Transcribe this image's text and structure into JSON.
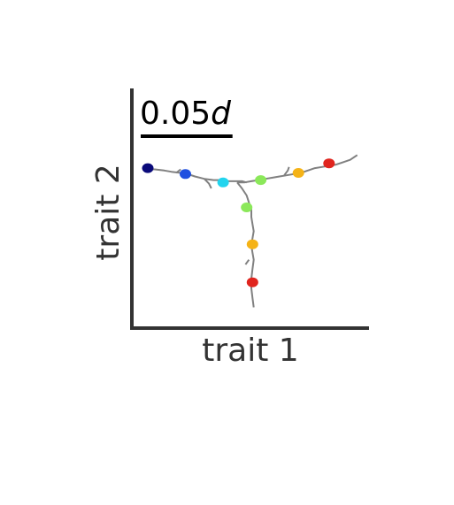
{
  "chart_data": {
    "type": "scatter",
    "xlabel": "trait 1",
    "ylabel": "trait 2",
    "xlim": [
      0,
      1
    ],
    "ylim": [
      0,
      1
    ],
    "grid": false,
    "scale_bar": {
      "number": "0.05",
      "unit": "d",
      "length": 0.39
    },
    "branches": [
      {
        "x": [
          0.05,
          0.09,
          0.13,
          0.16,
          0.2,
          0.23,
          0.26,
          0.3,
          0.34,
          0.37,
          0.4,
          0.43,
          0.46,
          0.48
        ],
        "y": [
          0.66,
          0.66,
          0.655,
          0.65,
          0.645,
          0.64,
          0.63,
          0.62,
          0.615,
          0.615,
          0.61,
          0.61,
          0.61,
          0.605
        ]
      },
      {
        "x": [
          0.44,
          0.47,
          0.5,
          0.53,
          0.56,
          0.59,
          0.62,
          0.65,
          0.68,
          0.71,
          0.74,
          0.77,
          0.8,
          0.83,
          0.86,
          0.89,
          0.92,
          0.95
        ],
        "y": [
          0.605,
          0.605,
          0.61,
          0.615,
          0.62,
          0.625,
          0.63,
          0.635,
          0.64,
          0.645,
          0.655,
          0.665,
          0.67,
          0.675,
          0.68,
          0.69,
          0.7,
          0.72
        ]
      },
      {
        "x": [
          0.44,
          0.46,
          0.48,
          0.49,
          0.5,
          0.5,
          0.505,
          0.51,
          0.505,
          0.5,
          0.505,
          0.51,
          0.505,
          0.5,
          0.5,
          0.505,
          0.51
        ],
        "y": [
          0.605,
          0.58,
          0.55,
          0.52,
          0.49,
          0.46,
          0.43,
          0.4,
          0.37,
          0.34,
          0.31,
          0.28,
          0.24,
          0.2,
          0.16,
          0.12,
          0.08
        ]
      },
      {
        "x": [
          0.3,
          0.32,
          0.33
        ],
        "y": [
          0.62,
          0.6,
          0.58
        ]
      },
      {
        "x": [
          0.64,
          0.655,
          0.66
        ],
        "y": [
          0.635,
          0.655,
          0.67
        ]
      },
      {
        "x": [
          0.49,
          0.475
        ],
        "y": [
          0.28,
          0.26
        ]
      },
      {
        "x": [
          0.18,
          0.2
        ],
        "y": [
          0.645,
          0.66
        ]
      }
    ],
    "points": [
      {
        "x": 0.06,
        "y": 0.665,
        "color": "#0a0a7a"
      },
      {
        "x": 0.22,
        "y": 0.64,
        "color": "#1f4fe0"
      },
      {
        "x": 0.38,
        "y": 0.605,
        "color": "#22d4ee"
      },
      {
        "x": 0.54,
        "y": 0.615,
        "color": "#8be85a"
      },
      {
        "x": 0.48,
        "y": 0.5,
        "color": "#8be85a"
      },
      {
        "x": 0.7,
        "y": 0.645,
        "color": "#f5b317"
      },
      {
        "x": 0.505,
        "y": 0.345,
        "color": "#f5b317"
      },
      {
        "x": 0.83,
        "y": 0.685,
        "color": "#e0251e"
      },
      {
        "x": 0.505,
        "y": 0.185,
        "color": "#e0251e"
      }
    ]
  }
}
